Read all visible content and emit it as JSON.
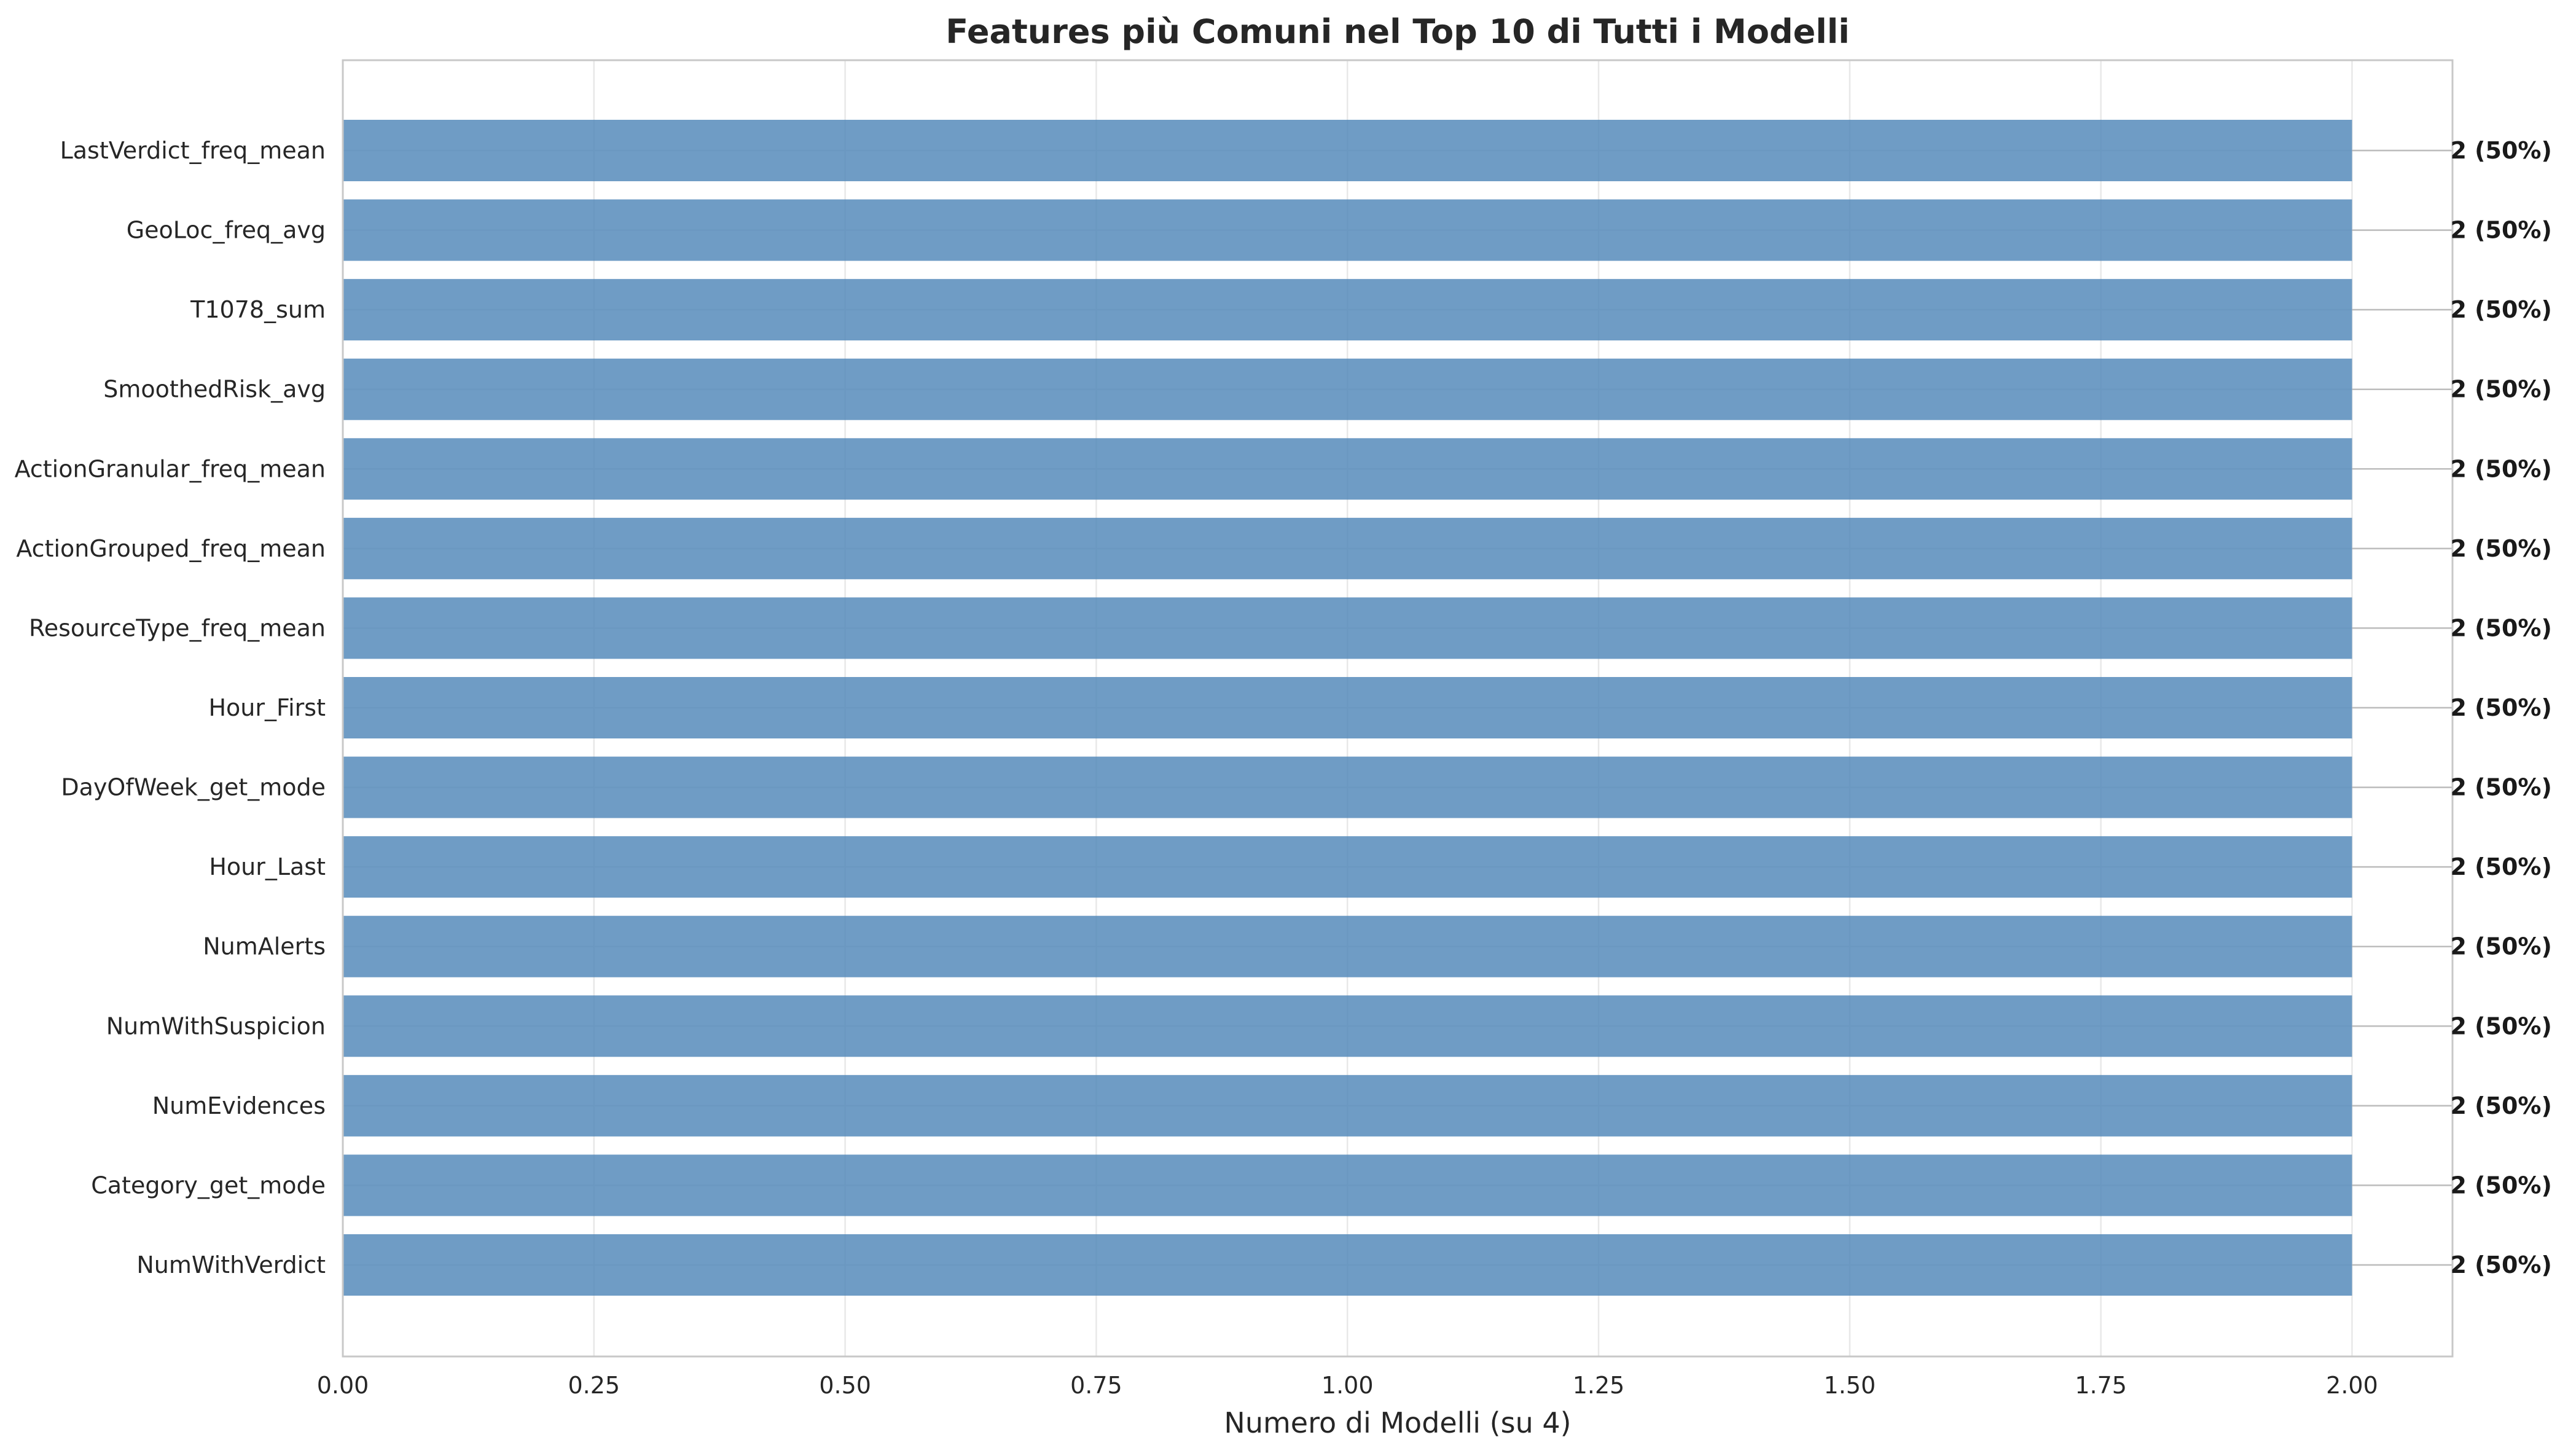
{
  "chart_data": {
    "type": "bar",
    "orientation": "horizontal",
    "title": "Features più Comuni nel Top 10 di Tutti i Modelli",
    "xlabel": "Numero di Modelli (su 4)",
    "ylabel": "",
    "xlim": [
      0,
      2.1
    ],
    "xticks": [
      "0.00",
      "0.25",
      "0.50",
      "0.75",
      "1.00",
      "1.25",
      "1.50",
      "1.75",
      "2.00"
    ],
    "categories": [
      "LastVerdict_freq_mean",
      "GeoLoc_freq_avg",
      "T1078_sum",
      "SmoothedRisk_avg",
      "ActionGranular_freq_mean",
      "ActionGrouped_freq_mean",
      "ResourceType_freq_mean",
      "Hour_First",
      "DayOfWeek_get_mode",
      "Hour_Last",
      "NumAlerts",
      "NumWithSuspicion",
      "NumEvidences",
      "Category_get_mode",
      "NumWithVerdict"
    ],
    "values": [
      2,
      2,
      2,
      2,
      2,
      2,
      2,
      2,
      2,
      2,
      2,
      2,
      2,
      2,
      2
    ],
    "data_labels": [
      "2 (50%)",
      "2 (50%)",
      "2 (50%)",
      "2 (50%)",
      "2 (50%)",
      "2 (50%)",
      "2 (50%)",
      "2 (50%)",
      "2 (50%)",
      "2 (50%)",
      "2 (50%)",
      "2 (50%)",
      "2 (50%)",
      "2 (50%)",
      "2 (50%)"
    ],
    "bar_color": "#4f86b8",
    "grid": true
  }
}
